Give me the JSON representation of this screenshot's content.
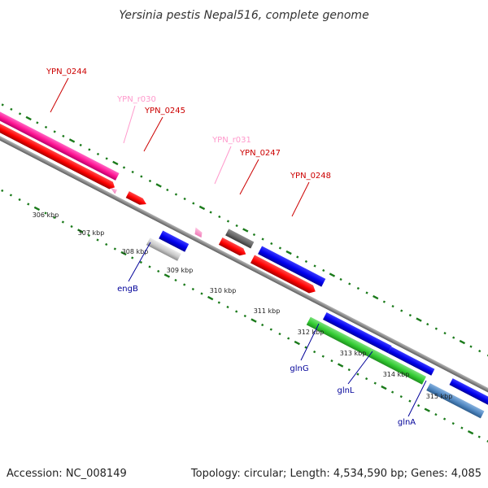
{
  "title": "Yersinia pestis Nepal516, complete genome",
  "accession": "Accession: NC_008149",
  "summary": "Topology: circular; Length: 4,534,590 bp; Genes: 4,085",
  "colors": {
    "cds": "#ff0000",
    "cds_dark": "#b80000",
    "gene_pink": "#ff2aa8",
    "rrna": "#ff99cc",
    "gene_blue": "#0000ee",
    "gene_green": "#33cc33",
    "gene_steel": "#4f86c0",
    "gene_gray": "#c8c8c8",
    "gene_dark_gray": "#666666",
    "backbone": "#8a8a8a",
    "ticks": "#1a7a1a",
    "label_red": "#cc0000",
    "label_pink": "#ff99cc",
    "label_blue": "#000099"
  },
  "kbp_labels": [
    "306 kbp",
    "307 kbp",
    "308 kbp",
    "309 kbp",
    "310 kbp",
    "311 kbp",
    "312 kbp",
    "313 kbp",
    "314 kbp",
    "315 kbp"
  ],
  "labels": {
    "ypn_0244": "YPN_0244",
    "ypn_r030": "YPN_r030",
    "ypn_0245": "YPN_0245",
    "ypn_r031": "YPN_r031",
    "ypn_0247": "YPN_0247",
    "ypn_0248": "YPN_0248",
    "engb": "engB",
    "glng": "glnG",
    "glnl": "glnL",
    "glna": "glnA"
  }
}
